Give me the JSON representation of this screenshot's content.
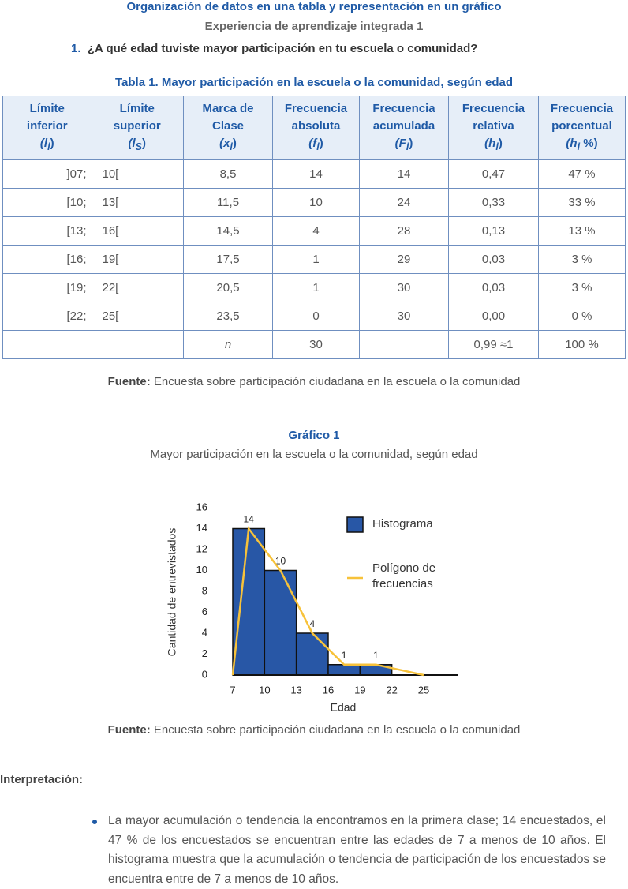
{
  "header": {
    "title": "Organización de datos en una tabla y representación en un gráfico",
    "subtitle": "Experiencia de aprendizaje integrada 1",
    "question_number": "1.",
    "question": "¿A qué edad tuviste mayor participación en tu escuela o comunidad?"
  },
  "table": {
    "caption": "Tabla 1. Mayor participación en la escuela o la comunidad, según edad",
    "headers": [
      {
        "lines": [
          "Límite",
          "inferior"
        ],
        "symbol": "(l",
        "sub": "i",
        "tail": ")"
      },
      {
        "lines": [
          "Límite",
          "superior"
        ],
        "symbol": "(l",
        "sub": "S",
        "tail": ")"
      },
      {
        "lines": [
          "Marca de",
          "Clase"
        ],
        "symbol": "(x",
        "sub": "i",
        "tail": ")"
      },
      {
        "lines": [
          "Frecuencia",
          "absoluta"
        ],
        "symbol": "(f",
        "sub": "i",
        "tail": ")"
      },
      {
        "lines": [
          "Frecuencia",
          "acumulada"
        ],
        "symbol": "(F",
        "sub": "i",
        "tail": ")"
      },
      {
        "lines": [
          "Frecuencia",
          "relativa"
        ],
        "symbol": "(h",
        "sub": "i",
        "tail": ")"
      },
      {
        "lines": [
          "Frecuencia",
          "porcentual"
        ],
        "symbol": "(h",
        "sub": "i",
        "tail": " %)"
      }
    ],
    "rows": [
      [
        "]07;",
        "10[",
        "8,5",
        "14",
        "14",
        "0,47",
        "47 %"
      ],
      [
        "[10;",
        "13[",
        "11,5",
        "10",
        "24",
        "0,33",
        "33 %"
      ],
      [
        "[13;",
        "16[",
        "14,5",
        "4",
        "28",
        "0,13",
        "13 %"
      ],
      [
        "[16;",
        "19[",
        "17,5",
        "1",
        "29",
        "0,03",
        "3 %"
      ],
      [
        "[19;",
        "22[",
        "20,5",
        "1",
        "30",
        "0,03",
        "3 %"
      ],
      [
        "[22;",
        "25[",
        "23,5",
        "0",
        "30",
        "0,00",
        "0 %"
      ]
    ],
    "total_row": [
      null,
      null,
      "n",
      "30",
      null,
      "0,99 ≈1",
      "100 %"
    ],
    "source_label": "Fuente:",
    "source": "Encuesta sobre participación ciudadana en la escuela o la comunidad"
  },
  "chart_data": {
    "type": "histogram",
    "title": "Gráfico 1",
    "subtitle": "Mayor participación en la escuela o la comunidad, según edad",
    "xlabel": "Edad",
    "ylabel": "Cantidad de entrevistados",
    "bins": [
      7,
      10,
      13,
      16,
      19,
      22,
      25
    ],
    "series": [
      {
        "name": "Histograma",
        "color": "#2857a6",
        "values": [
          14,
          10,
          4,
          1,
          1,
          0
        ]
      }
    ],
    "line": {
      "type": "line",
      "name": "Polígono de frecuencias",
      "color": "#f7c23a",
      "x": [
        7,
        8.5,
        11.5,
        14.5,
        17.5,
        20.5,
        25
      ],
      "values": [
        0,
        14,
        10,
        4,
        1,
        1,
        0
      ]
    },
    "xlim": [
      7,
      28
    ],
    "ylim": [
      0,
      16
    ],
    "xticks": [
      7,
      10,
      13,
      16,
      19,
      22,
      25
    ],
    "yticks": [
      0,
      2,
      4,
      6,
      8,
      10,
      12,
      14,
      16
    ],
    "data_labels": true,
    "legend": "upper right",
    "source_label": "Fuente:",
    "source": "Encuesta sobre participación ciudadana en la escuela o la comunidad"
  },
  "interpretation": {
    "title": "Interpretación:",
    "bullets": [
      "La mayor acumulación o tendencia la encontramos en la primera clase; 14 encuestados, el 47 % de los encuestados se encuentran entre las edades de 7 a menos de 10 años. El histograma muestra que la acumulación o tendencia de participación de los encuestados se encuentra entre de 7 a menos de 10 años."
    ]
  }
}
